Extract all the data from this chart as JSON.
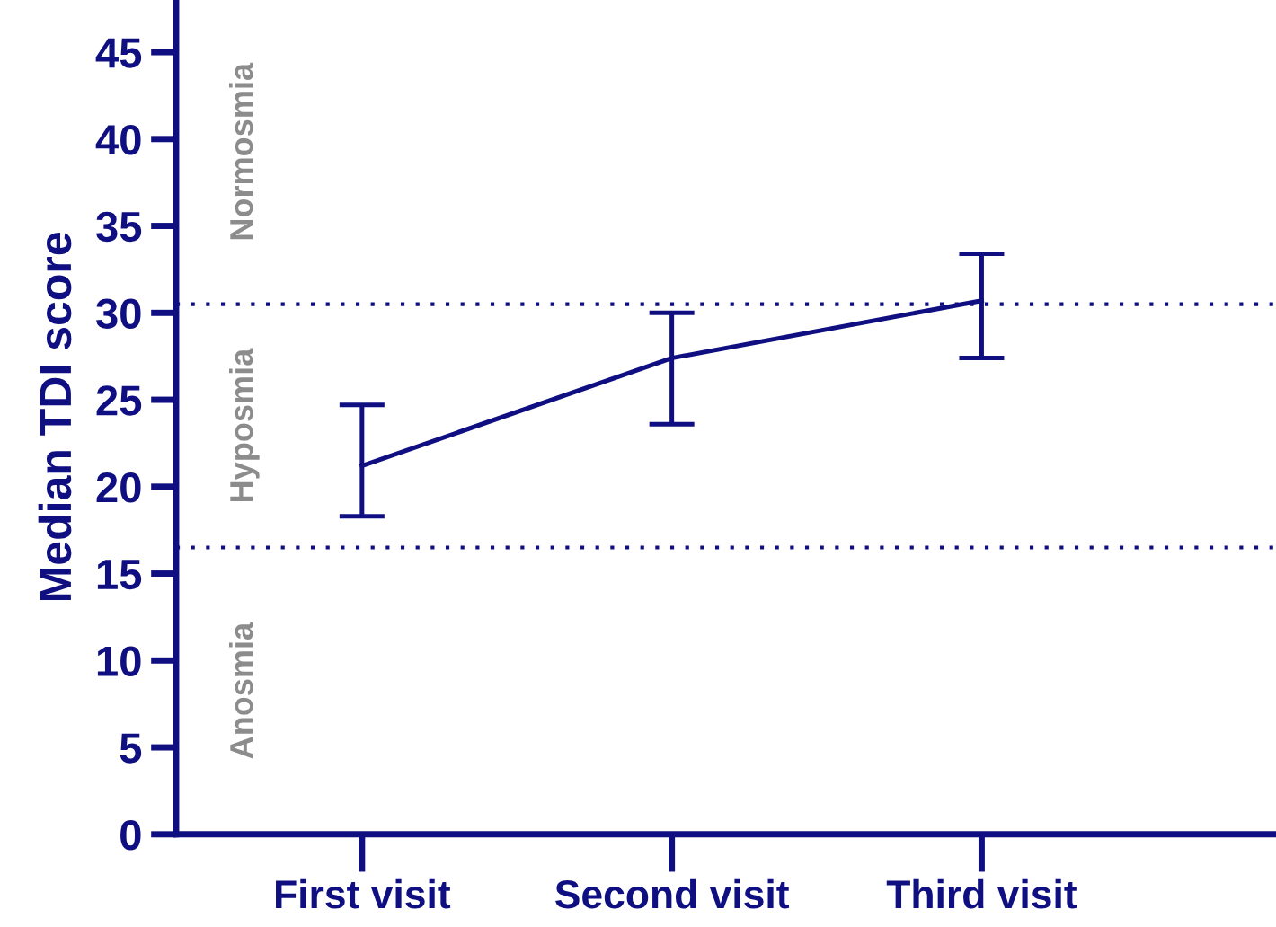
{
  "chart_data": {
    "type": "line",
    "ylabel": "Median TDI score",
    "categories": [
      "First visit",
      "Second visit",
      "Third visit"
    ],
    "series": [
      {
        "color": "#0f0f82",
        "values": [
          21.2,
          27.4,
          30.7
        ],
        "errors": [
          [
            18.3,
            24.7
          ],
          [
            23.6,
            30.0
          ],
          [
            27.4,
            33.4
          ]
        ]
      }
    ],
    "ylim": [
      0,
      48
    ],
    "yticks": [
      0,
      5,
      10,
      15,
      20,
      25,
      30,
      35,
      40,
      45
    ],
    "ref_lines": [
      {
        "axis": "y",
        "value": 30.5,
        "color": "#0f0f82",
        "line_style": "dotted"
      },
      {
        "axis": "y",
        "value": 16.5,
        "color": "#0f0f82",
        "line_style": "dotted"
      }
    ],
    "annotations": [
      "Normosmia",
      "Hyposmia",
      "Anosmia"
    ],
    "grid": false,
    "legend": false,
    "marker": "none",
    "line_style": "solid"
  }
}
